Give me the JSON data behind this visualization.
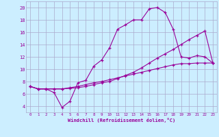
{
  "xlabel": "Windchill (Refroidissement éolien,°C)",
  "bg_color": "#cceeff",
  "grid_color": "#aaaacc",
  "line_color": "#990099",
  "xlim": [
    -0.5,
    23.5
  ],
  "ylim": [
    3.0,
    21.0
  ],
  "xticks": [
    0,
    1,
    2,
    3,
    4,
    5,
    6,
    7,
    8,
    9,
    10,
    11,
    12,
    13,
    14,
    15,
    16,
    17,
    18,
    19,
    20,
    21,
    22,
    23
  ],
  "yticks": [
    4,
    6,
    8,
    10,
    12,
    14,
    16,
    18,
    20
  ],
  "series": [
    [
      7.2,
      6.8,
      6.8,
      6.2,
      3.8,
      4.8,
      7.8,
      8.2,
      10.5,
      11.5,
      13.5,
      16.5,
      17.2,
      18.0,
      18.0,
      19.8,
      20.0,
      19.2,
      16.5,
      12.0,
      11.8,
      12.2,
      12.0,
      11.0
    ],
    [
      7.2,
      6.8,
      6.8,
      6.8,
      6.8,
      7.0,
      7.2,
      7.5,
      7.8,
      8.0,
      8.3,
      8.6,
      8.9,
      9.2,
      9.5,
      9.8,
      10.1,
      10.4,
      10.7,
      10.9,
      10.9,
      11.0,
      11.0,
      11.0
    ],
    [
      7.2,
      6.8,
      6.8,
      6.8,
      6.8,
      6.9,
      7.0,
      7.2,
      7.5,
      7.8,
      8.0,
      8.5,
      9.0,
      9.5,
      10.2,
      11.0,
      11.8,
      12.5,
      13.2,
      14.0,
      14.8,
      15.5,
      16.2,
      11.0
    ]
  ]
}
